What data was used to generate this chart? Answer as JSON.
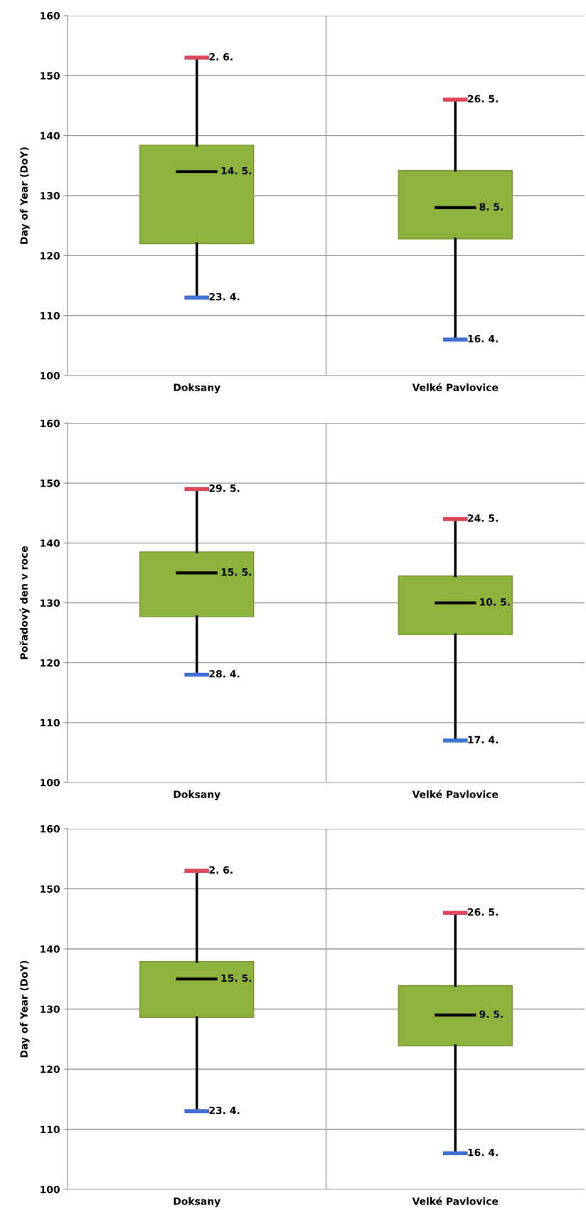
{
  "chart_data": [
    {
      "type": "box",
      "ylabel": "Day of Year (DoY)",
      "categories": [
        "Doksany",
        "Velké Pavlovice"
      ],
      "color": "#8db33c",
      "boxes": [
        {
          "low": 113,
          "q1": 122,
          "median": 134,
          "q3": 138.4,
          "high": 153
        },
        {
          "low": 106,
          "q1": 122.8,
          "median": 128,
          "q3": 134.2,
          "high": 146
        }
      ],
      "ylim": [
        100,
        160
      ],
      "yticks": [
        100,
        110,
        120,
        130,
        140,
        150,
        160
      ],
      "grid": true,
      "annotations": [
        {
          "text": "2. 6.",
          "x": "Doksany",
          "y": 153
        },
        {
          "text": "14. 5.",
          "x": "Doksany",
          "y": 134
        },
        {
          "text": "23. 4.",
          "x": "Doksany",
          "y": 113
        },
        {
          "text": "26. 5.",
          "x": "Velké Pavlovice",
          "y": 146
        },
        {
          "text": "8. 5.",
          "x": "Velké Pavlovice",
          "y": 128
        },
        {
          "text": "16. 4.",
          "x": "Velké Pavlovice",
          "y": 106
        }
      ]
    },
    {
      "type": "box",
      "ylabel": "Pořadový den v roce",
      "categories": [
        "Doksany",
        "Velké Pavlovice"
      ],
      "color": "#8db33c",
      "boxes": [
        {
          "low": 118,
          "q1": 127.7,
          "median": 135,
          "q3": 138.5,
          "high": 149
        },
        {
          "low": 107,
          "q1": 124.7,
          "median": 130,
          "q3": 134.5,
          "high": 144
        }
      ],
      "ylim": [
        100,
        160
      ],
      "yticks": [
        100,
        110,
        120,
        130,
        140,
        150,
        160
      ],
      "grid": true,
      "annotations": [
        {
          "text": "29. 5.",
          "x": "Doksany",
          "y": 149
        },
        {
          "text": "15. 5.",
          "x": "Doksany",
          "y": 135
        },
        {
          "text": "28. 4.",
          "x": "Doksany",
          "y": 118
        },
        {
          "text": "24. 5.",
          "x": "Velké Pavlovice",
          "y": 144
        },
        {
          "text": "10. 5.",
          "x": "Velké Pavlovice",
          "y": 130
        },
        {
          "text": "17. 4.",
          "x": "Velké Pavlovice",
          "y": 107
        }
      ]
    },
    {
      "type": "box",
      "ylabel": "Day of Year (DoY)",
      "categories": [
        "Doksany",
        "Velké Pavlovice"
      ],
      "color": "#8db33c",
      "boxes": [
        {
          "low": 113,
          "q1": 128.6,
          "median": 135,
          "q3": 137.9,
          "high": 153
        },
        {
          "low": 106,
          "q1": 123.9,
          "median": 129,
          "q3": 133.9,
          "high": 146
        }
      ],
      "ylim": [
        100,
        160
      ],
      "yticks": [
        100,
        110,
        120,
        130,
        140,
        150,
        160
      ],
      "grid": true,
      "annotations": [
        {
          "text": "2. 6.",
          "x": "Doksany",
          "y": 153
        },
        {
          "text": "15. 5.",
          "x": "Doksany",
          "y": 135
        },
        {
          "text": "23. 4.",
          "x": "Doksany",
          "y": 113
        },
        {
          "text": "26. 5.",
          "x": "Velké Pavlovice",
          "y": 146
        },
        {
          "text": "9. 5.",
          "x": "Velké Pavlovice",
          "y": 129
        },
        {
          "text": "16. 4.",
          "x": "Velké Pavlovice",
          "y": 106
        }
      ]
    }
  ]
}
